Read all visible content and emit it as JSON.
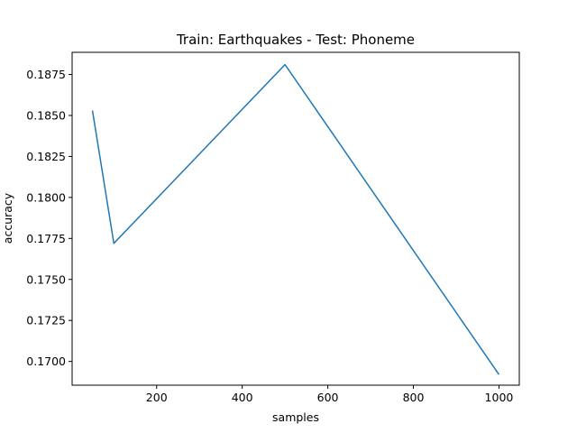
{
  "chart_data": {
    "type": "line",
    "title": "Train: Earthquakes - Test: Phoneme",
    "xlabel": "samples",
    "ylabel": "accuracy",
    "xlim": [
      2.5,
      1047.5
    ],
    "ylim": [
      0.16855,
      0.18885
    ],
    "xticks": [
      200,
      400,
      600,
      800,
      1000
    ],
    "xtick_labels": [
      "200",
      "400",
      "600",
      "800",
      "1000"
    ],
    "yticks": [
      0.17,
      0.1725,
      0.175,
      0.1775,
      0.18,
      0.1825,
      0.185,
      0.1875
    ],
    "ytick_labels": [
      "0.1700",
      "0.1725",
      "0.1750",
      "0.1775",
      "0.1800",
      "0.1825",
      "0.1850",
      "0.1875"
    ],
    "grid": false,
    "series": [
      {
        "x": [
          50,
          100,
          500,
          1000
        ],
        "y": [
          0.1853,
          0.1772,
          0.1881,
          0.1692
        ],
        "color": "#1f77b4"
      }
    ]
  }
}
